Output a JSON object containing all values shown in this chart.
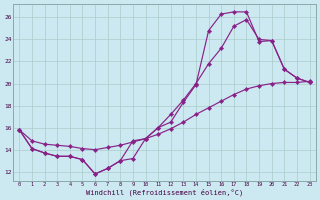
{
  "bg_color": "#cce8f0",
  "line_color": "#882288",
  "grid_color": "#aacccc",
  "xlabel": "Windchill (Refroidissement éolien,°C)",
  "xlim": [
    -0.5,
    23.5
  ],
  "ylim": [
    11.2,
    27.2
  ],
  "xticks": [
    0,
    1,
    2,
    3,
    4,
    5,
    6,
    7,
    8,
    9,
    10,
    11,
    12,
    13,
    14,
    15,
    16,
    17,
    18,
    19,
    20,
    21,
    22,
    23
  ],
  "yticks": [
    12,
    14,
    16,
    18,
    20,
    22,
    24,
    26
  ],
  "curve1_x": [
    0,
    1,
    2,
    3,
    4,
    5,
    6,
    7,
    8,
    9,
    10,
    11,
    12,
    13,
    14,
    15,
    16,
    17,
    18,
    19,
    20,
    21,
    22,
    23
  ],
  "curve1_y": [
    15.8,
    14.1,
    13.7,
    13.4,
    13.4,
    13.1,
    11.8,
    12.3,
    13.0,
    13.2,
    15.0,
    16.0,
    16.5,
    18.3,
    19.9,
    24.8,
    26.3,
    26.5,
    26.5,
    23.8,
    23.9,
    21.3,
    20.5,
    20.1
  ],
  "curve2_x": [
    0,
    1,
    2,
    3,
    4,
    5,
    6,
    7,
    8,
    9,
    10,
    11,
    12,
    13,
    14,
    15,
    16,
    17,
    18,
    19,
    20,
    21,
    22,
    23
  ],
  "curve2_y": [
    15.8,
    14.1,
    13.7,
    13.4,
    13.4,
    13.1,
    11.8,
    12.3,
    13.0,
    14.8,
    15.0,
    16.0,
    17.2,
    18.5,
    20.0,
    21.8,
    23.2,
    25.2,
    25.8,
    24.0,
    23.9,
    21.3,
    20.5,
    20.1
  ],
  "curve3_x": [
    0,
    1,
    2,
    3,
    4,
    5,
    6,
    7,
    8,
    9,
    10,
    11,
    12,
    13,
    14,
    15,
    16,
    17,
    18,
    19,
    20,
    21,
    22,
    23
  ],
  "curve3_y": [
    15.8,
    14.8,
    14.5,
    14.4,
    14.3,
    14.1,
    14.0,
    14.2,
    14.4,
    14.7,
    15.0,
    15.4,
    15.9,
    16.5,
    17.2,
    17.8,
    18.4,
    19.0,
    19.5,
    19.8,
    20.0,
    20.1,
    20.1,
    20.2
  ]
}
